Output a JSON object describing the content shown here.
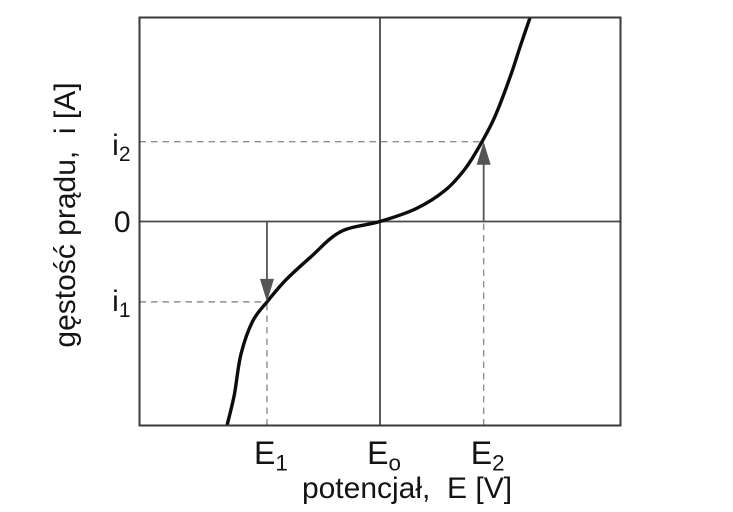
{
  "chart_data": {
    "type": "line",
    "title": "",
    "xlabel": "potencjał,  E [V]",
    "ylabel": "gęstość prądu,  i [A]",
    "units": "arbitrary / qualitative (no numeric scale shown)",
    "xlim": [
      -1,
      1
    ],
    "ylim": [
      -1,
      1
    ],
    "grid": false,
    "frame": "closed box; internal vertical line at E₀ and horizontal zero-current line",
    "x_ticks": [
      {
        "base": "E",
        "sub": "1",
        "x": -0.47
      },
      {
        "base": "E",
        "sub": "o",
        "x": 0.0
      },
      {
        "base": "E",
        "sub": "2",
        "x": 0.431
      }
    ],
    "y_ticks": [
      {
        "base": "i",
        "sub": "2",
        "y": 0.391
      },
      {
        "base": "0",
        "sub": "",
        "y": 0.0
      },
      {
        "base": "i",
        "sub": "1",
        "y": -0.394
      }
    ],
    "series": [
      {
        "name": "i(E) polarization curve",
        "points": [
          [
            -0.636,
            -1.0
          ],
          [
            -0.606,
            -0.85
          ],
          [
            -0.578,
            -0.65
          ],
          [
            -0.53,
            -0.49
          ],
          [
            -0.47,
            -0.394
          ],
          [
            -0.39,
            -0.285
          ],
          [
            -0.289,
            -0.175
          ],
          [
            -0.164,
            -0.05
          ],
          [
            0.0,
            0.0
          ],
          [
            0.15,
            0.063
          ],
          [
            0.272,
            0.154
          ],
          [
            0.356,
            0.262
          ],
          [
            0.424,
            0.391
          ],
          [
            0.48,
            0.52
          ],
          [
            0.543,
            0.715
          ],
          [
            0.585,
            0.865
          ],
          [
            0.624,
            1.0
          ]
        ]
      }
    ],
    "guides": [
      {
        "orient": "h",
        "at": 0.391,
        "from": -1.0,
        "to": 0.424
      },
      {
        "orient": "h",
        "at": -0.394,
        "from": -1.0,
        "to": -0.47
      },
      {
        "orient": "v",
        "at": -0.47,
        "from": -1.0,
        "to": -0.394
      },
      {
        "orient": "v",
        "at": 0.431,
        "from": -1.0,
        "to": 0.0
      }
    ],
    "ref_lines": [
      {
        "orient": "h",
        "at": 0.0
      },
      {
        "orient": "v",
        "at": 0.0
      }
    ],
    "arrows": [
      {
        "x": -0.47,
        "y_from": 0.0,
        "y_to": -0.394,
        "direction": "down"
      },
      {
        "x": 0.431,
        "y_from": 0.0,
        "y_to": 0.391,
        "direction": "up"
      }
    ],
    "notes": "Sigmoidal current–potential curve through (E₀, 0); dashed guides mark (E₁, i₁) and (E₂, i₂); gray arrows run from the zero-current line down to i₁ at E₁ and up to i₂ at E₂."
  },
  "colors": {
    "background": "#ffffff",
    "frame": "#3a3a3a",
    "ref_line": "#4a4a4a",
    "curve": "#0c0c0c",
    "dashed_guide": "#8f8f8f",
    "arrow": "#555555",
    "text": "#141414"
  }
}
